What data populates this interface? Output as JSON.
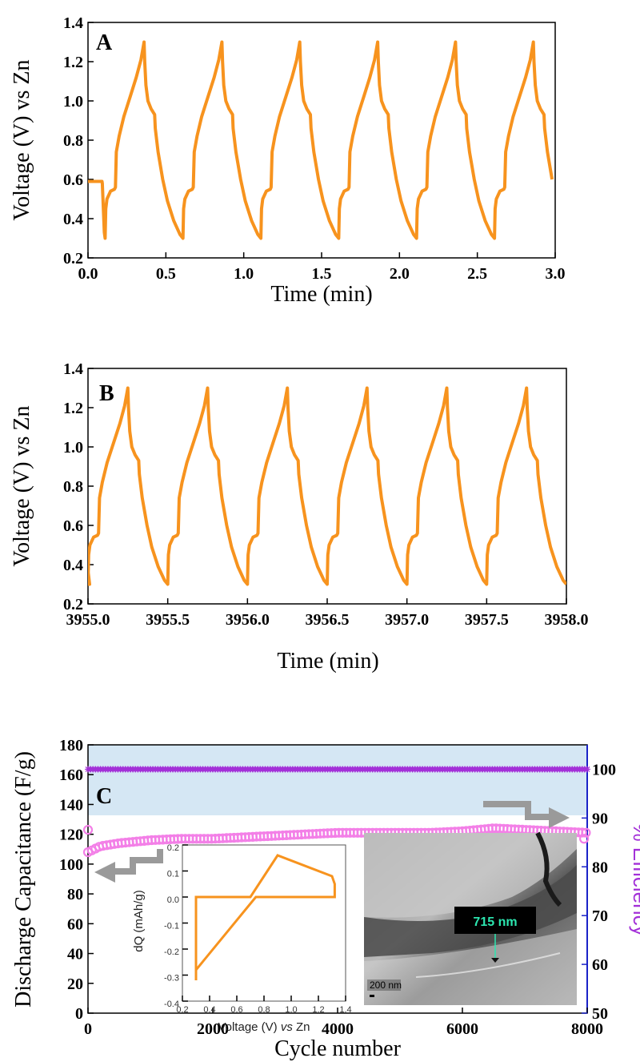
{
  "chart_data": [
    {
      "panel": "A",
      "type": "line",
      "xlabel": "Time (min)",
      "ylabel": "Voltage (V) vs Zn",
      "xlim": [
        0.0,
        3.0
      ],
      "ylim": [
        0.2,
        1.4
      ],
      "xticks": [
        "0.0",
        "0.5",
        "1.0",
        "1.5",
        "2.0",
        "2.5",
        "3.0"
      ],
      "yticks": [
        "0.2",
        "0.4",
        "0.6",
        "0.8",
        "1.0",
        "1.2",
        "1.4"
      ],
      "color": "#F7931E",
      "series": [
        {
          "x": [
            0.0,
            0.09,
            0.09,
            0.1,
            0.105,
            0.11,
            0.115,
            0.12,
            0.14,
            0.17,
            0.18,
            0.19,
            0.2,
            0.25,
            0.3,
            0.35,
            0.4,
            0.43,
            0.435,
            0.45,
            0.48,
            0.5,
            0.52,
            0.53,
            0.56,
            0.6,
            0.65,
            0.69
          ],
          "y": [
            0.59,
            0.59,
            0.58,
            0.42,
            0.33,
            0.3,
            0.46,
            0.5,
            0.54,
            0.55,
            0.56,
            0.74,
            0.8,
            0.93,
            1.02,
            1.12,
            1.22,
            1.3,
            1.22,
            1.08,
            1.0,
            0.96,
            0.93,
            0.86,
            0.66,
            0.5,
            0.38,
            0.3
          ],
          "note": "first cycle; subsequent cycles repeat with period 0.5 min until 3.0"
        }
      ]
    },
    {
      "panel": "B",
      "type": "line",
      "xlabel": "Time (min)",
      "ylabel": "Voltage (V) vs Zn",
      "xlim": [
        3955.0,
        3958.0
      ],
      "ylim": [
        0.2,
        1.4
      ],
      "xticks": [
        "3955.0",
        "3955.5",
        "3956.0",
        "3956.5",
        "3957.0",
        "3957.5",
        "3958.0"
      ],
      "yticks": [
        "0.2",
        "0.4",
        "0.6",
        "0.8",
        "1.0",
        "1.2",
        "1.4"
      ],
      "color": "#F7931E",
      "period": 0.5,
      "peaks_x": [
        3955.25,
        3955.77,
        3956.27,
        3956.77,
        3957.29,
        3957.8
      ]
    },
    {
      "panel": "C",
      "type": "scatter",
      "xlabel": "Cycle number",
      "ylabel": "Discharge Capacitance (F/g)",
      "ylabel_right": "% Efficiency",
      "xlim": [
        0,
        8000
      ],
      "ylim": [
        0,
        180
      ],
      "ylim_right": [
        50,
        105
      ],
      "xticks": [
        "0",
        "2000",
        "4000",
        "6000",
        "8000"
      ],
      "yticks": [
        "0",
        "20",
        "40",
        "60",
        "80",
        "100",
        "120",
        "140",
        "160",
        "180"
      ],
      "yticks_right": [
        "50",
        "60",
        "70",
        "80",
        "90",
        "100"
      ],
      "series": [
        {
          "axis": "left",
          "color": "#F37FE7",
          "x": [
            0,
            200,
            500,
            1000,
            1500,
            2000,
            2500,
            3000,
            3500,
            4000,
            4500,
            5000,
            5500,
            6000,
            6500,
            7000,
            7500,
            8000
          ],
          "y": [
            108,
            112,
            114,
            116,
            117,
            117,
            118,
            119,
            120,
            121,
            121,
            121,
            121,
            122,
            124,
            123,
            122,
            121
          ]
        },
        {
          "axis": "right",
          "color": "#A330D8",
          "x": [
            0,
            1000,
            2000,
            3000,
            4000,
            5000,
            6000,
            7000,
            8000
          ],
          "y": [
            100,
            100,
            100,
            100,
            100,
            100,
            100,
            100,
            100
          ]
        }
      ],
      "inset": {
        "type": "line",
        "xlabel_prefix": "Voltage (V) ",
        "xlabel_italic": "vs",
        "xlabel_suffix": " Zn",
        "ylabel": "dQ (mAh/g)",
        "xlim": [
          0.2,
          1.4
        ],
        "ylim": [
          -0.4,
          0.2
        ],
        "xticks": [
          "0.2",
          "0.4",
          "0.6",
          "0.8",
          "1.0",
          "1.2",
          "1.4"
        ],
        "yticks": [
          "-0.4",
          "-0.3",
          "-0.2",
          "-0.1",
          "0.0",
          "0.1",
          "0.2"
        ],
        "x": [
          0.3,
          0.3,
          0.7,
          0.9,
          1.3,
          1.32,
          1.32,
          1.0,
          0.8,
          0.74,
          0.3,
          0.3
        ],
        "y": [
          -0.32,
          0.0,
          0.0,
          0.16,
          0.08,
          0.05,
          0.0,
          0.0,
          0.0,
          0.0,
          -0.28,
          -0.32
        ]
      },
      "image_label": "715 nm",
      "scale_bar": "200 nm"
    }
  ]
}
